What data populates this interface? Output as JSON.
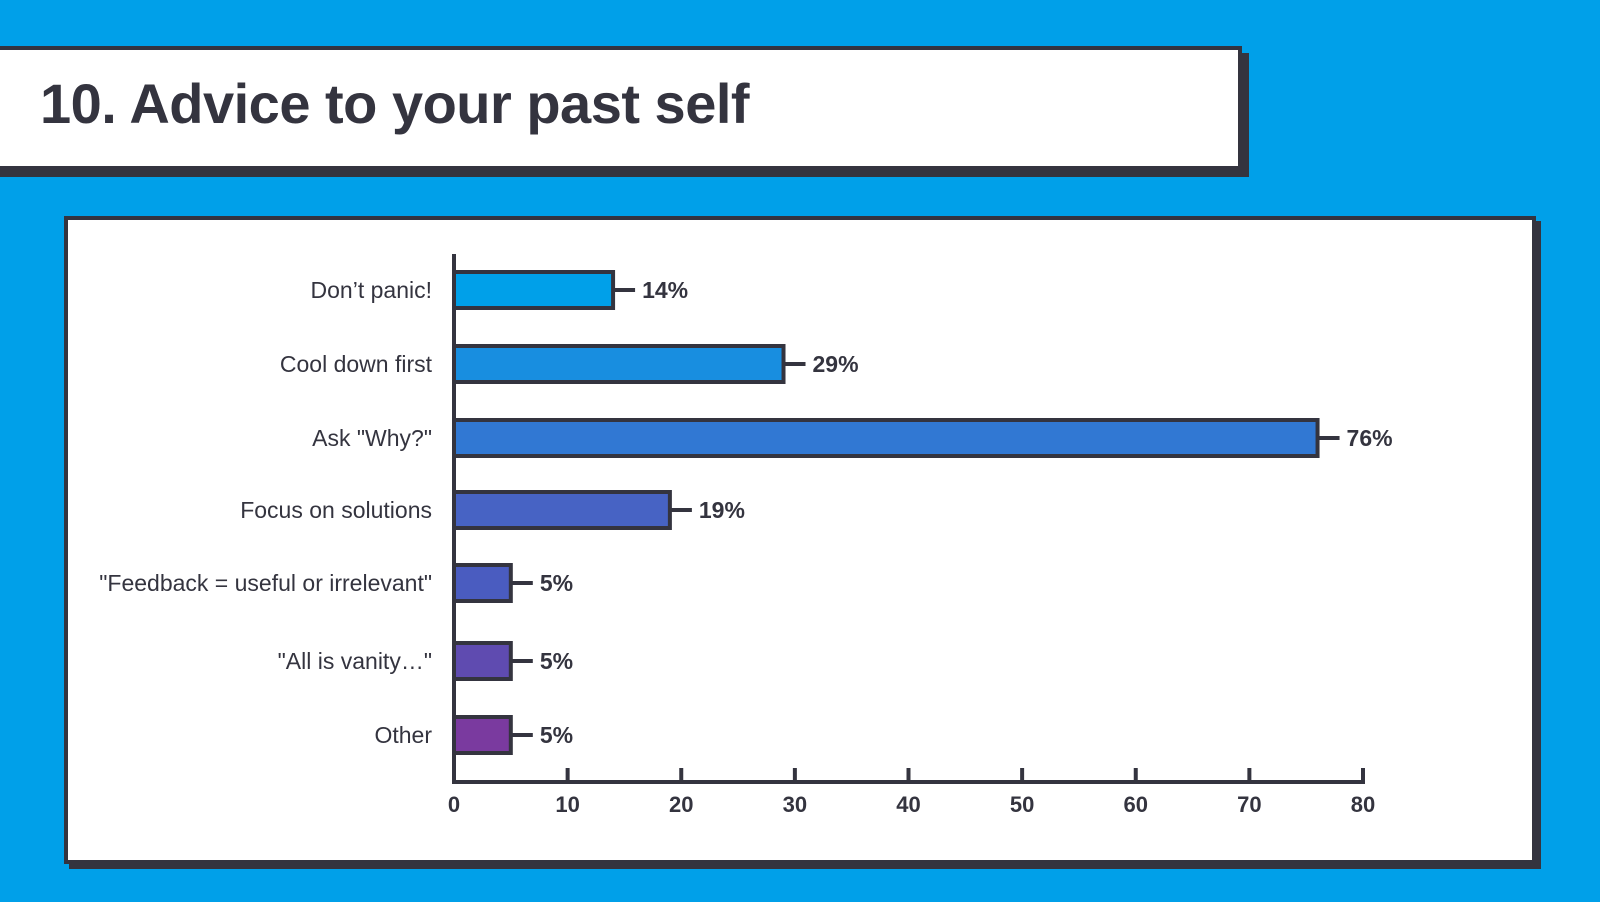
{
  "title": "10. Advice to your past self",
  "colors": {
    "background": "#00a0e9",
    "ink": "#34343f",
    "panel": "#ffffff"
  },
  "chart_data": {
    "type": "bar",
    "orientation": "horizontal",
    "title": "10. Advice to your past self",
    "xlabel": "",
    "ylabel": "",
    "categories": [
      "Don’t panic!",
      "Cool down first",
      "Ask \"Why?\"",
      "Focus on solutions",
      "\"Feedback = useful or irrelevant\"",
      "\"All is vanity…\"",
      "Other"
    ],
    "values": [
      14,
      29,
      76,
      19,
      5,
      5,
      5
    ],
    "value_labels": [
      "14%",
      "29%",
      "76%",
      "19%",
      "5%",
      "5%",
      "5%"
    ],
    "bar_colors": [
      "#00a0e9",
      "#188ee0",
      "#3178d3",
      "#4763c4",
      "#4a5cc0",
      "#5f4bb0",
      "#7a3a9f"
    ],
    "xlim": [
      0,
      80
    ],
    "xticks": [
      0,
      10,
      20,
      30,
      40,
      50,
      60,
      70,
      80
    ],
    "grid": false,
    "legend": "none"
  }
}
